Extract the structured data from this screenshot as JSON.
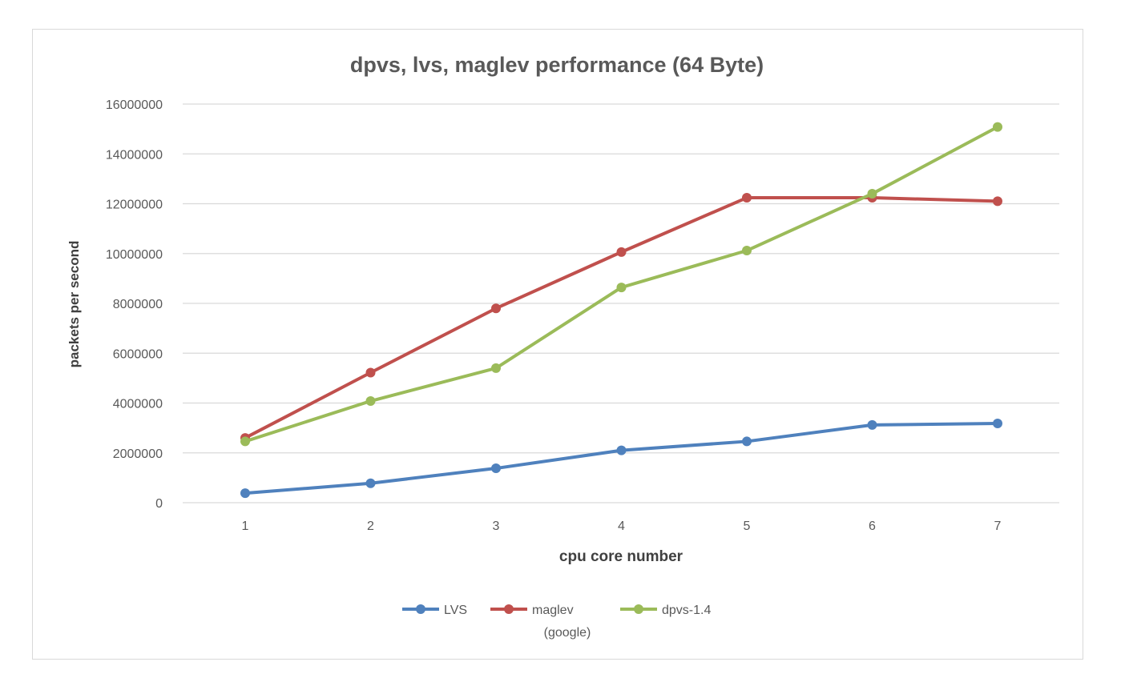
{
  "chart_data": {
    "type": "line",
    "title": "dpvs, lvs, maglev performance (64 Byte)",
    "xlabel": "cpu core number",
    "ylabel": "packets per second",
    "categories": [
      "1",
      "2",
      "3",
      "4",
      "5",
      "6",
      "7"
    ],
    "ylim": [
      0,
      16000000
    ],
    "yticks": [
      "0",
      "2000000",
      "4000000",
      "6000000",
      "8000000",
      "10000000",
      "12000000",
      "14000000",
      "16000000"
    ],
    "grid": true,
    "legend_position": "bottom",
    "series": [
      {
        "name": "LVS",
        "legend_lines": [
          "LVS"
        ],
        "color": "#4f81bd",
        "values": [
          380000,
          780000,
          1380000,
          2100000,
          2460000,
          3120000,
          3180000
        ]
      },
      {
        "name": "maglev (google)",
        "legend_lines": [
          "maglev",
          "(google)"
        ],
        "color": "#c0504d",
        "values": [
          2600000,
          5220000,
          7800000,
          10060000,
          12240000,
          12240000,
          12100000
        ]
      },
      {
        "name": "dpvs-1.4",
        "legend_lines": [
          "dpvs-1.4"
        ],
        "color": "#9bbb59",
        "values": [
          2460000,
          4080000,
          5400000,
          8640000,
          10120000,
          12400000,
          15080000
        ]
      }
    ]
  }
}
